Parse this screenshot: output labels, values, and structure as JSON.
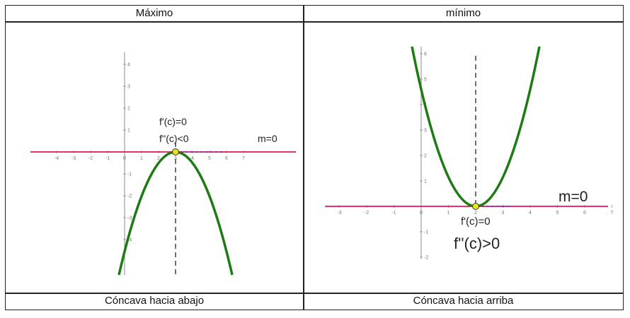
{
  "table": {
    "headers": [
      "Máximo",
      "mínimo"
    ],
    "footers": [
      "Cóncava hacia abajo",
      "Cóncava hacia arriba"
    ]
  },
  "left_graph": {
    "first_derivative_label": "f'(c)=0",
    "second_derivative_label": "f''(c)<0",
    "slope_label": "m=0",
    "x_ticks": [
      "-4",
      "-3",
      "-2",
      "-1",
      "0",
      "1",
      "2",
      "3",
      "4",
      "5",
      "6",
      "7"
    ],
    "y_ticks": [
      "4",
      "3",
      "2",
      "1",
      "-1",
      "-2",
      "-3",
      "-4"
    ]
  },
  "right_graph": {
    "first_derivative_label": "f'(c)=0",
    "second_derivative_label": "f''(c)>0",
    "slope_label": "m=0",
    "x_ticks": [
      "-3",
      "-2",
      "-1",
      "0",
      "1",
      "2",
      "3",
      "4",
      "5",
      "6",
      "7"
    ],
    "y_ticks": [
      "6",
      "5",
      "4",
      "3",
      "2",
      "1",
      "-1",
      "-2"
    ]
  },
  "colors": {
    "curve": "#1e7a14",
    "tangent": "#e8326a",
    "point": "#e8e21a",
    "axis": "#888888"
  }
}
